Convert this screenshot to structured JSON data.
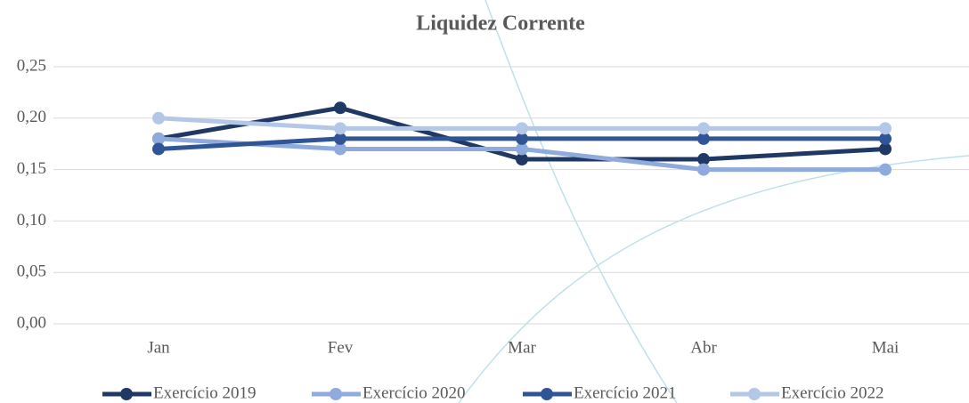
{
  "chart_data": {
    "type": "line",
    "title": "Liquidez Corrente",
    "categories": [
      "Jan",
      "Fev",
      "Mar",
      "Abr",
      "Mai"
    ],
    "series": [
      {
        "name": "Exercício 2019",
        "color": "#203864",
        "values": [
          0.18,
          0.21,
          0.16,
          0.16,
          0.17
        ]
      },
      {
        "name": "Exercício 2020",
        "color": "#8faadc",
        "values": [
          0.18,
          0.17,
          0.17,
          0.15,
          0.15
        ]
      },
      {
        "name": "Exercício 2021",
        "color": "#2f5597",
        "values": [
          0.17,
          0.18,
          0.18,
          0.18,
          0.18
        ]
      },
      {
        "name": "Exercício 2022",
        "color": "#b4c7e7",
        "values": [
          0.2,
          0.19,
          0.19,
          0.19,
          0.19
        ]
      }
    ],
    "ylim": [
      0,
      0.25
    ],
    "yticks": [
      {
        "value": 0,
        "label": "0,00"
      },
      {
        "value": 0.05,
        "label": "0,05"
      },
      {
        "value": 0.1,
        "label": "0,10"
      },
      {
        "value": 0.15,
        "label": "0,15"
      },
      {
        "value": 0.2,
        "label": "0,20"
      },
      {
        "value": 0.25,
        "label": "0,25"
      }
    ],
    "grid": true,
    "legend": "bottom"
  }
}
